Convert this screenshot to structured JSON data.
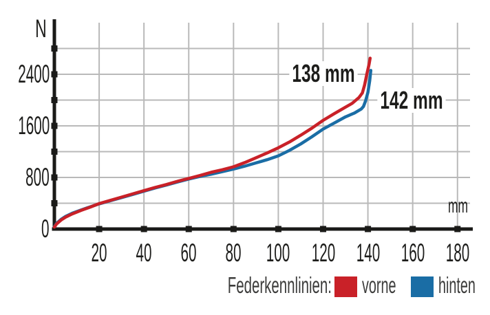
{
  "chart_data": {
    "type": "line",
    "title": "",
    "xlabel": "mm",
    "ylabel": "N",
    "xlim": [
      0,
      190
    ],
    "ylim": [
      0,
      3200
    ],
    "grid": true,
    "x_axis": {
      "unit": "mm",
      "ticks": [
        20,
        40,
        60,
        80,
        100,
        120,
        140,
        160,
        180
      ],
      "tick_labels": [
        "20",
        "40",
        "60",
        "80",
        "100",
        "120",
        "140",
        "160",
        "180"
      ],
      "gridlines": [
        20,
        40,
        60,
        80,
        100,
        120,
        140,
        160,
        180
      ]
    },
    "y_axis": {
      "unit": "N",
      "ticks": [
        400,
        800,
        1200,
        1600,
        2000,
        2400,
        2800
      ],
      "labeled_ticks": [
        0,
        800,
        1600,
        2400
      ],
      "tick_labels": [
        "0",
        "800",
        "1600",
        "2400"
      ],
      "gridlines": [
        400,
        800,
        1200,
        1600,
        2000,
        2400,
        2800
      ]
    },
    "series": [
      {
        "name": "vorne",
        "color": "#c92128",
        "points": [
          [
            0,
            30
          ],
          [
            1,
            80
          ],
          [
            3,
            140
          ],
          [
            5,
            185
          ],
          [
            8,
            235
          ],
          [
            12,
            290
          ],
          [
            16,
            340
          ],
          [
            20,
            395
          ],
          [
            25,
            445
          ],
          [
            30,
            495
          ],
          [
            35,
            545
          ],
          [
            40,
            595
          ],
          [
            45,
            645
          ],
          [
            50,
            690
          ],
          [
            55,
            740
          ],
          [
            60,
            785
          ],
          [
            65,
            830
          ],
          [
            70,
            880
          ],
          [
            75,
            920
          ],
          [
            80,
            965
          ],
          [
            85,
            1030
          ],
          [
            90,
            1105
          ],
          [
            95,
            1180
          ],
          [
            100,
            1260
          ],
          [
            105,
            1350
          ],
          [
            110,
            1455
          ],
          [
            115,
            1565
          ],
          [
            120,
            1685
          ],
          [
            125,
            1790
          ],
          [
            130,
            1890
          ],
          [
            133,
            1950
          ],
          [
            136,
            2040
          ],
          [
            137.5,
            2110
          ],
          [
            138.5,
            2230
          ],
          [
            139.5,
            2400
          ],
          [
            140.5,
            2550
          ],
          [
            141,
            2650
          ]
        ]
      },
      {
        "name": "hinten",
        "color": "#1a6da5",
        "points": [
          [
            0,
            35
          ],
          [
            1,
            90
          ],
          [
            3,
            150
          ],
          [
            5,
            195
          ],
          [
            8,
            245
          ],
          [
            12,
            295
          ],
          [
            16,
            345
          ],
          [
            20,
            390
          ],
          [
            25,
            440
          ],
          [
            30,
            487
          ],
          [
            35,
            537
          ],
          [
            40,
            587
          ],
          [
            45,
            637
          ],
          [
            50,
            682
          ],
          [
            55,
            730
          ],
          [
            60,
            775
          ],
          [
            65,
            815
          ],
          [
            70,
            850
          ],
          [
            75,
            890
          ],
          [
            80,
            930
          ],
          [
            85,
            975
          ],
          [
            90,
            1025
          ],
          [
            95,
            1075
          ],
          [
            100,
            1135
          ],
          [
            105,
            1220
          ],
          [
            110,
            1320
          ],
          [
            115,
            1430
          ],
          [
            120,
            1550
          ],
          [
            125,
            1645
          ],
          [
            130,
            1740
          ],
          [
            134,
            1800
          ],
          [
            137,
            1860
          ],
          [
            138,
            1900
          ],
          [
            139,
            1990
          ],
          [
            140,
            2120
          ],
          [
            140.8,
            2300
          ],
          [
            141.3,
            2460
          ]
        ]
      }
    ],
    "annotations": [
      {
        "text": "138 mm",
        "x_mm": 120,
        "y_n": 2410,
        "series": "vorne"
      },
      {
        "text": "142 mm",
        "x_mm": 159.5,
        "y_n": 1995,
        "series": "hinten"
      }
    ],
    "legend": {
      "position": "bottom-right",
      "label": "Federkennlinien:",
      "entries": [
        {
          "label": "vorne",
          "color": "#c92128"
        },
        {
          "label": "hinten",
          "color": "#1a6da5"
        }
      ]
    },
    "colors": {
      "grid": "#b9b9b9",
      "axis": "#1a1a18",
      "text": "#1d1d1b"
    }
  }
}
